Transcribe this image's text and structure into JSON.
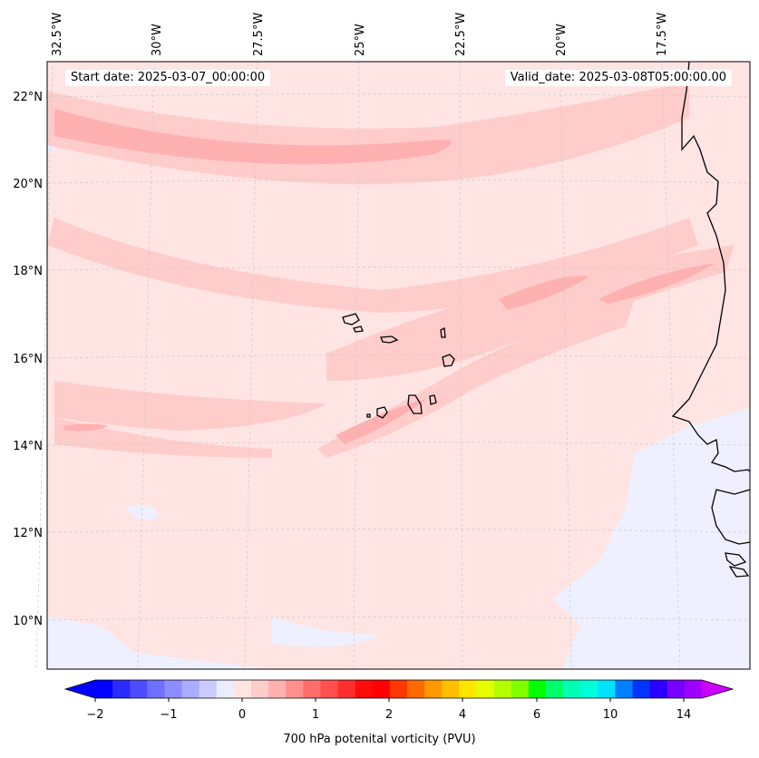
{
  "map": {
    "start_date_text": "Start date: 2025-03-07_00:00:00",
    "valid_date_text": "Valid_date: 2025-03-08T05:00:00.00",
    "lon_labels": [
      "32.5°W",
      "30°W",
      "27.5°W",
      "25°W",
      "22.5°W",
      "20°W",
      "17.5°W"
    ],
    "lat_labels": [
      "22°N",
      "20°N",
      "18°N",
      "16°N",
      "14°N",
      "12°N",
      "10°N"
    ],
    "colors": {
      "background_field": "#ffe4e4",
      "positive_band": "#ffcccc",
      "strong_band": "#ffb0b0",
      "negative_area": "#eef0ff",
      "coastline": "#000000",
      "gridline": "#c8c8c8"
    }
  },
  "colorbar": {
    "label": "700 hPa potenital vorticity (PVU)",
    "tick_labels": [
      "−2",
      "−1",
      "0",
      "1",
      "2",
      "4",
      "6",
      "10",
      "14"
    ],
    "swatches": [
      "#0000ff",
      "#2b2bff",
      "#4d4dff",
      "#7070ff",
      "#8d8dff",
      "#ababff",
      "#cbcbff",
      "#ececff",
      "#ffe4e4",
      "#ffcccc",
      "#ffb0b0",
      "#ff8e8e",
      "#ff6d6d",
      "#ff4f4f",
      "#ff2e2e",
      "#ff0b0b",
      "#ff0000",
      "#ff3700",
      "#ff6a00",
      "#ff9900",
      "#ffbf00",
      "#ffe500",
      "#e6ff00",
      "#b3ff00",
      "#7fff00",
      "#00ff00",
      "#00ff6a",
      "#00ffb4",
      "#00ffd8",
      "#00e1ff",
      "#0080ff",
      "#0033ff",
      "#2a00ff",
      "#7700ff",
      "#9d00ff"
    ],
    "extend_min_color": "#0000ff",
    "extend_max_color": "#cc00ff"
  }
}
